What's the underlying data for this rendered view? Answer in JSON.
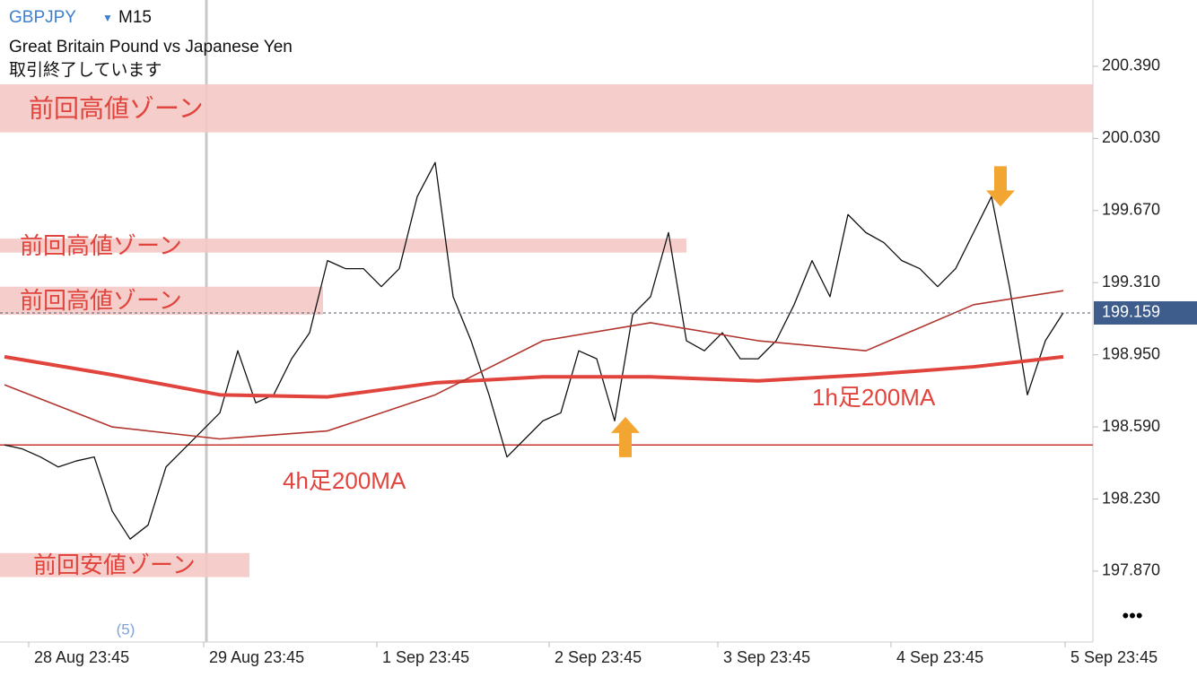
{
  "chart_data": {
    "type": "line",
    "timeframe": "M15",
    "subtitle": "Great Britain Pound vs Japanese Yen",
    "status": "取引終了しています",
    "period_note": "(5)",
    "ylim": [
      197.534,
      200.721
    ],
    "xlim": [
      0,
      60
    ],
    "yticks": [
      {
        "value": 200.39,
        "label": "200.390"
      },
      {
        "value": 200.03,
        "label": "200.030"
      },
      {
        "value": 199.67,
        "label": "199.670"
      },
      {
        "value": 199.31,
        "label": "199.310"
      },
      {
        "value": 198.95,
        "label": "198.950"
      },
      {
        "value": 198.59,
        "label": "198.590"
      },
      {
        "value": 198.23,
        "label": "198.230"
      },
      {
        "value": 197.87,
        "label": "197.870"
      }
    ],
    "xticks": [
      {
        "value": 1.35,
        "label": "28 Aug 23:45"
      },
      {
        "value": 11.1,
        "label": "29 Aug 23:45"
      },
      {
        "value": 20.75,
        "label": "1 Sep 23:45"
      },
      {
        "value": 30.35,
        "label": "2 Sep 23:45"
      },
      {
        "value": 39.75,
        "label": "3 Sep 23:45"
      },
      {
        "value": 49.4,
        "label": "4 Sep 23:45"
      },
      {
        "value": 59.1,
        "label": "5 Sep 23:45"
      }
    ],
    "series": [
      {
        "name": "GBPJPY",
        "color": "#111111",
        "width": 1.3,
        "x": [
          0,
          1,
          2,
          3,
          4,
          5,
          6,
          7,
          8,
          9,
          10,
          11,
          12,
          13,
          14,
          15,
          16,
          17,
          18,
          19,
          20,
          21,
          22,
          23,
          24,
          25,
          26,
          27,
          28,
          29,
          30,
          31,
          32,
          33,
          34,
          35,
          36,
          37,
          38,
          39,
          40,
          41,
          42,
          43,
          44,
          45,
          46,
          47,
          48,
          49,
          50,
          51,
          52,
          53,
          54,
          55,
          56,
          57,
          58,
          59
        ],
        "values": [
          198.5,
          198.48,
          198.44,
          198.39,
          198.42,
          198.44,
          198.17,
          198.03,
          198.1,
          198.39,
          198.48,
          198.57,
          198.66,
          198.97,
          198.71,
          198.75,
          198.93,
          199.06,
          199.42,
          199.38,
          199.38,
          199.29,
          199.38,
          199.74,
          199.91,
          199.24,
          199.02,
          198.75,
          198.44,
          198.53,
          198.62,
          198.66,
          198.97,
          198.93,
          198.62,
          199.15,
          199.24,
          199.56,
          199.02,
          198.97,
          199.06,
          198.93,
          198.93,
          199.02,
          199.2,
          199.42,
          199.24,
          199.65,
          199.56,
          199.51,
          199.42,
          199.38,
          199.29,
          199.38,
          199.56,
          199.74,
          199.29,
          198.75,
          199.02,
          199.16
        ]
      },
      {
        "name": "1h足200MA",
        "color": "#e0443c",
        "width": 4,
        "x": [
          0,
          6,
          12,
          18,
          24,
          30,
          36,
          42,
          48,
          54,
          59
        ],
        "values": [
          198.94,
          198.85,
          198.75,
          198.74,
          198.81,
          198.84,
          198.84,
          198.82,
          198.85,
          198.89,
          198.94
        ]
      },
      {
        "color": "#b2342e",
        "width": 1.6,
        "x": [
          0,
          6,
          12,
          18,
          24,
          30,
          36,
          42,
          48,
          54,
          59
        ],
        "values": [
          198.8,
          198.59,
          198.53,
          198.57,
          198.75,
          199.02,
          199.11,
          199.02,
          198.97,
          199.2,
          199.27
        ]
      }
    ],
    "hlines": [
      {
        "name": "4h足200MA",
        "value": 198.5,
        "color": "#c8352e"
      }
    ],
    "last_price": 199.159,
    "zones": [
      {
        "label": "前回高値ゾーン",
        "range": [
          200.06,
          200.3
        ],
        "xrange": [
          0,
          60
        ]
      },
      {
        "label": "前回高値ゾーン",
        "range": [
          199.46,
          199.53
        ],
        "xrange": [
          0,
          38
        ]
      },
      {
        "label": "前回高値ゾーン",
        "range": [
          199.15,
          199.29
        ],
        "xrange": [
          0,
          17.75
        ]
      },
      {
        "label": "前回安値ゾーン",
        "range": [
          197.84,
          197.96
        ],
        "xrange": [
          0,
          13.65
        ]
      }
    ],
    "arrows": [
      {
        "x": 55.5,
        "y": 199.69,
        "direction": "down",
        "color": "#f3a531"
      },
      {
        "x": 34.6,
        "y": 198.64,
        "direction": "up",
        "color": "#f3a531"
      }
    ]
  }
}
